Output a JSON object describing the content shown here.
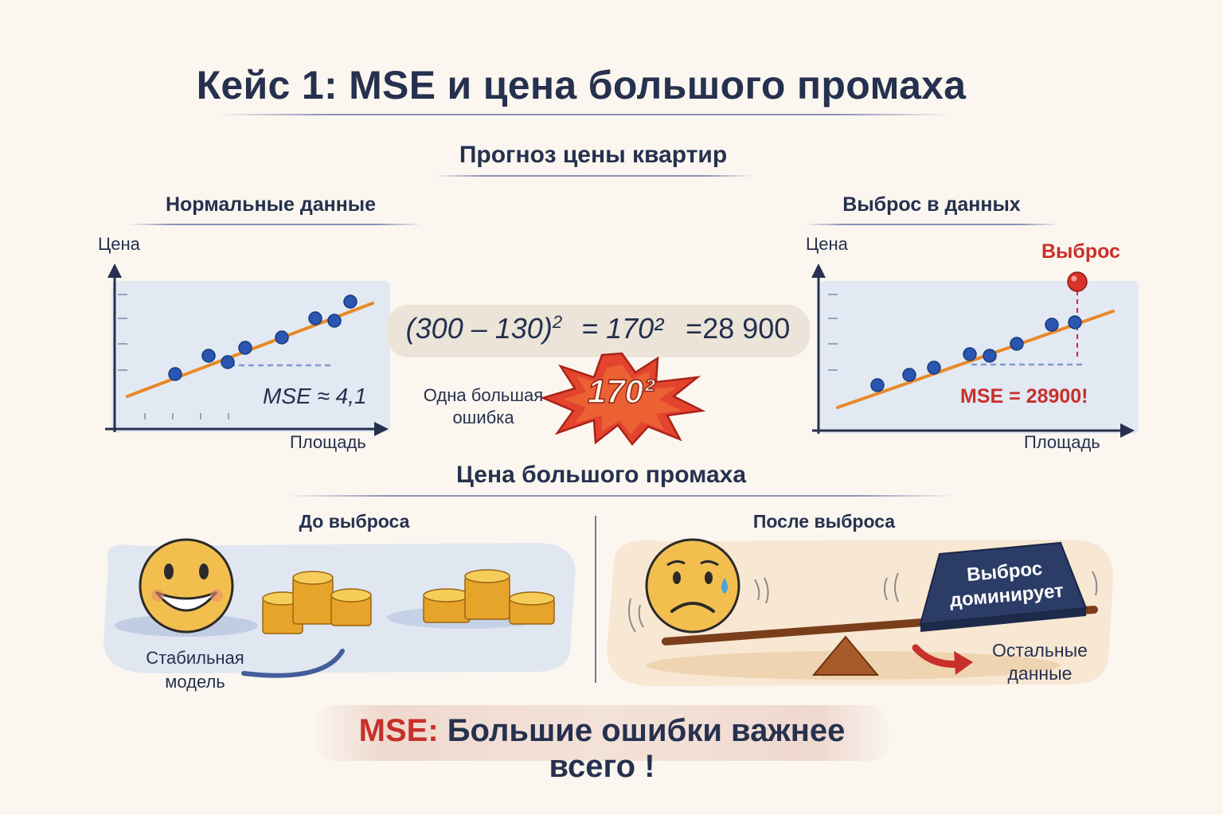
{
  "title": "Кейс 1: MSE и цена большого промаха",
  "subtitle": "Прогноз цены квартир",
  "left_chart": {
    "heading": "Нормальные данные",
    "y_label": "Цена",
    "x_label": "Площадь",
    "mse_label": "MSE ≈ 4,1"
  },
  "right_chart": {
    "heading": "Выброс в данных",
    "y_label": "Цена",
    "x_label": "Площадь",
    "outlier_label": "Выброс",
    "mse_label": "MSE = 28900!"
  },
  "formula": {
    "lhs": "(300 – 130)",
    "lhs_exp": "2",
    "mid": "= 170²",
    "rhs": "=28 900"
  },
  "burst": {
    "label": "170²",
    "caption_line1": "Одна большая",
    "caption_line2": "ошибка"
  },
  "section2": {
    "heading": "Цена большого промаха",
    "before": {
      "heading": "До выброса",
      "caption_line1": "Стабильная",
      "caption_line2": "модель"
    },
    "after": {
      "heading": "После выброса",
      "weight_line1": "Выброс",
      "weight_line2": "доминирует",
      "caption_line1": "Остальные",
      "caption_line2": "данные"
    }
  },
  "banner": {
    "prefix": "MSE:",
    "text": "Большие ошибки важнее всего !"
  },
  "colors": {
    "accent_red": "#c8302a",
    "navy": "#26314f",
    "point_blue": "#2a56b0",
    "fit_orange": "#e8892a",
    "coin_gold": "#e6a52a"
  }
}
